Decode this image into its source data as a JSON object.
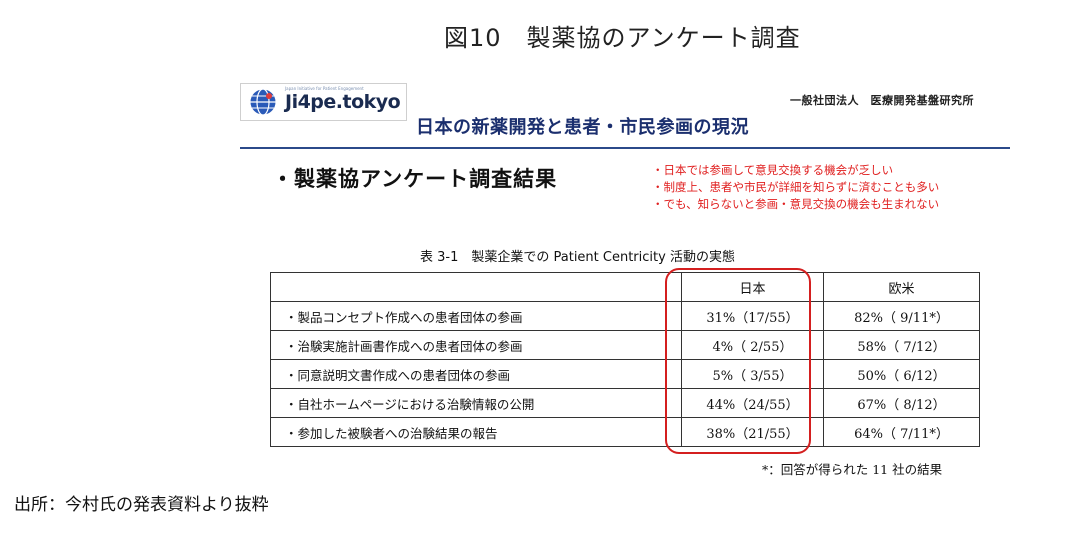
{
  "figure_title": "図10　製薬協のアンケート調査",
  "logo": {
    "tagline": "Japan Initiative for Patient Engagement",
    "brand": "Ji4pe.tokyo"
  },
  "organization": "一般社団法人　医療開発基盤研究所",
  "slide_heading": "日本の新薬開発と患者・市民参画の現況",
  "section_title": "・製薬協アンケート調査結果",
  "notes": [
    "・日本では参画して意見交換する機会が乏しい",
    "・制度上、患者や市民が詳細を知らずに済むことも多い",
    "・でも、知らないと参画・意見交換の機会も生まれない"
  ],
  "table": {
    "caption": "表 3-1　製薬企業での Patient Centricity 活動の実態",
    "headers": {
      "item": "",
      "japan": "日本",
      "west": "欧米"
    },
    "rows": [
      {
        "item": "・製品コンセプト作成への患者団体の参画",
        "japan": "31%（17/55）",
        "west": "82%（ 9/11*）"
      },
      {
        "item": "・治験実施計画書作成への患者団体の参画",
        "japan": "4%（ 2/55）",
        "west": "58%（ 7/12）"
      },
      {
        "item": "・同意説明文書作成への患者団体の参画",
        "japan": "5%（ 3/55）",
        "west": "50%（ 6/12）"
      },
      {
        "item": "・自社ホームページにおける治験情報の公開",
        "japan": "44%（24/55）",
        "west": "67%（ 8/12）"
      },
      {
        "item": "・参加した被験者への治験結果の報告",
        "japan": "38%（21/55）",
        "west": "64%（ 7/11*）"
      }
    ],
    "footnote": "*：回答が得られた 11 社の結果"
  },
  "source": "出所：今村氏の発表資料より抜粋",
  "colors": {
    "accent_red": "#d41f1f",
    "heading_blue": "#1b2f6e"
  }
}
